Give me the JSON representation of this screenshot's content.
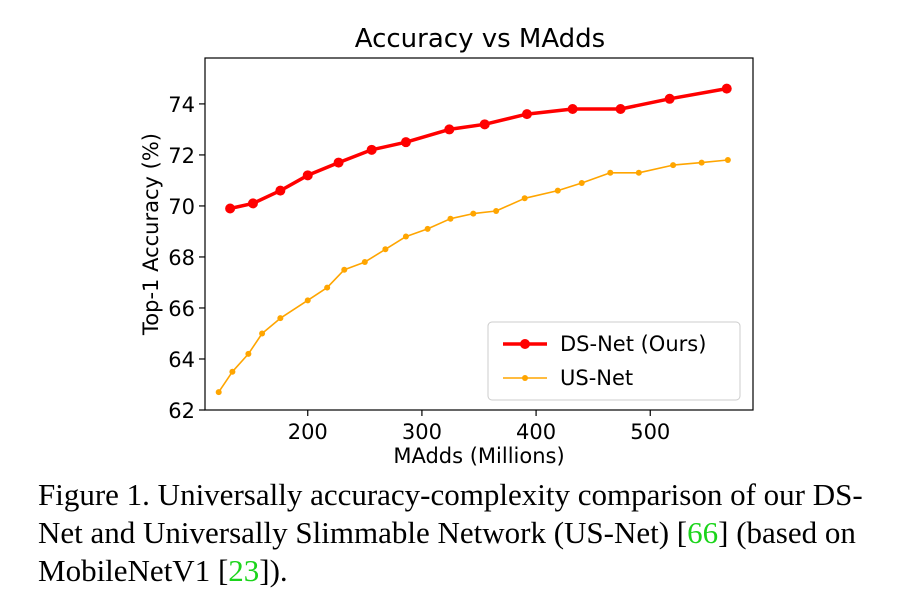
{
  "chart_data": {
    "type": "line",
    "title": "Accuracy vs MAdds",
    "xlabel": "MAdds (Millions)",
    "ylabel": "Top-1 Accuracy (%)",
    "xlim": [
      110,
      590
    ],
    "ylim": [
      62,
      75.8
    ],
    "xticks": [
      200,
      300,
      400,
      500
    ],
    "yticks": [
      62,
      64,
      66,
      68,
      70,
      72,
      74
    ],
    "grid": false,
    "legend_position": "lower-right",
    "series": [
      {
        "name": "DS-Net (Ours)",
        "color": "#ff0000",
        "x": [
          132,
          152,
          176,
          200,
          227,
          256,
          286,
          324,
          355,
          392,
          432,
          474,
          517,
          567
        ],
        "y": [
          69.9,
          70.1,
          70.6,
          71.2,
          71.7,
          72.2,
          72.5,
          73.0,
          73.2,
          73.6,
          73.8,
          73.8,
          74.2,
          74.6
        ]
      },
      {
        "name": "US-Net",
        "color": "#ffa500",
        "x": [
          122,
          134,
          148,
          160,
          176,
          200,
          217,
          232,
          250,
          268,
          286,
          305,
          325,
          345,
          365,
          390,
          419,
          440,
          465,
          490,
          520,
          545,
          568
        ],
        "y": [
          62.7,
          63.5,
          64.2,
          65.0,
          65.6,
          66.3,
          66.8,
          67.5,
          67.8,
          68.3,
          68.8,
          69.1,
          69.5,
          69.7,
          69.8,
          70.3,
          70.6,
          70.9,
          71.3,
          71.3,
          71.6,
          71.7,
          71.8
        ]
      }
    ]
  },
  "caption": {
    "before_ref1": "Figure 1. Universally accuracy-complexity comparison of our DS-Net and Universally Slimmable Network (US-Net) [",
    "ref1": "66",
    "between_refs": "] (based on MobileNetV1 [",
    "ref2": "23",
    "after_ref2": "])."
  },
  "colors": {
    "citation": "#1bd41b"
  }
}
